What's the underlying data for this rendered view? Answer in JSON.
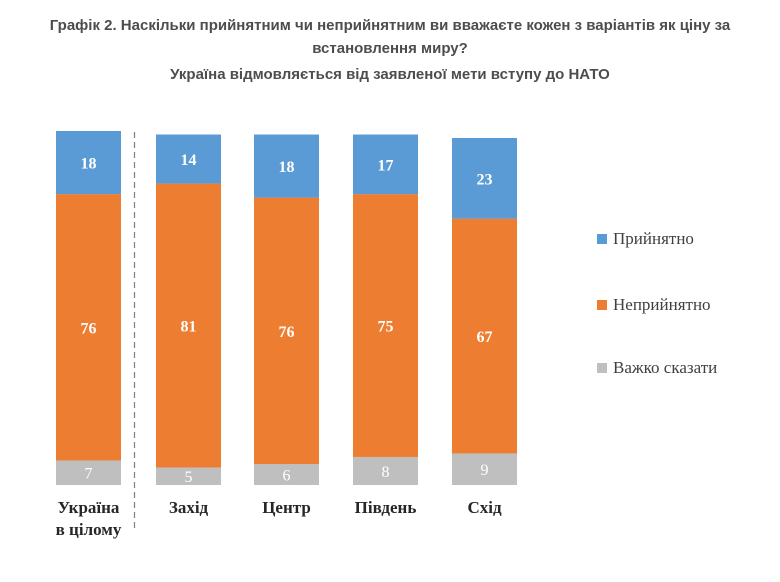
{
  "header": {
    "title": "Графік 2. Наскільки прийнятним чи неприйнятним ви вважаєте кожен з варіантів як ціну за встановлення миру?",
    "subtitle": "Україна відмовляється від заявленої мети вступу до НАТО"
  },
  "chart_data": {
    "type": "bar",
    "stacked": true,
    "categories": [
      [
        "Україна",
        "в цілому"
      ],
      [
        "Захід"
      ],
      [
        "Центр"
      ],
      [
        "Південь"
      ],
      [
        "Схід"
      ]
    ],
    "series": [
      {
        "name": "Важко сказати",
        "color": "#bfbfbf",
        "values": [
          7,
          5,
          6,
          8,
          9
        ]
      },
      {
        "name": "Неприйнятно",
        "color": "#ed7d31",
        "values": [
          76,
          81,
          76,
          75,
          67
        ]
      },
      {
        "name": "Прийнятно",
        "color": "#5b9bd5",
        "values": [
          18,
          14,
          18,
          17,
          23
        ]
      }
    ],
    "legend_order": [
      "Прийнятно",
      "Неприйнятно",
      "Важко сказати"
    ],
    "legend_position": "right",
    "separator_after_category": 0,
    "ylim": [
      0,
      101
    ]
  }
}
